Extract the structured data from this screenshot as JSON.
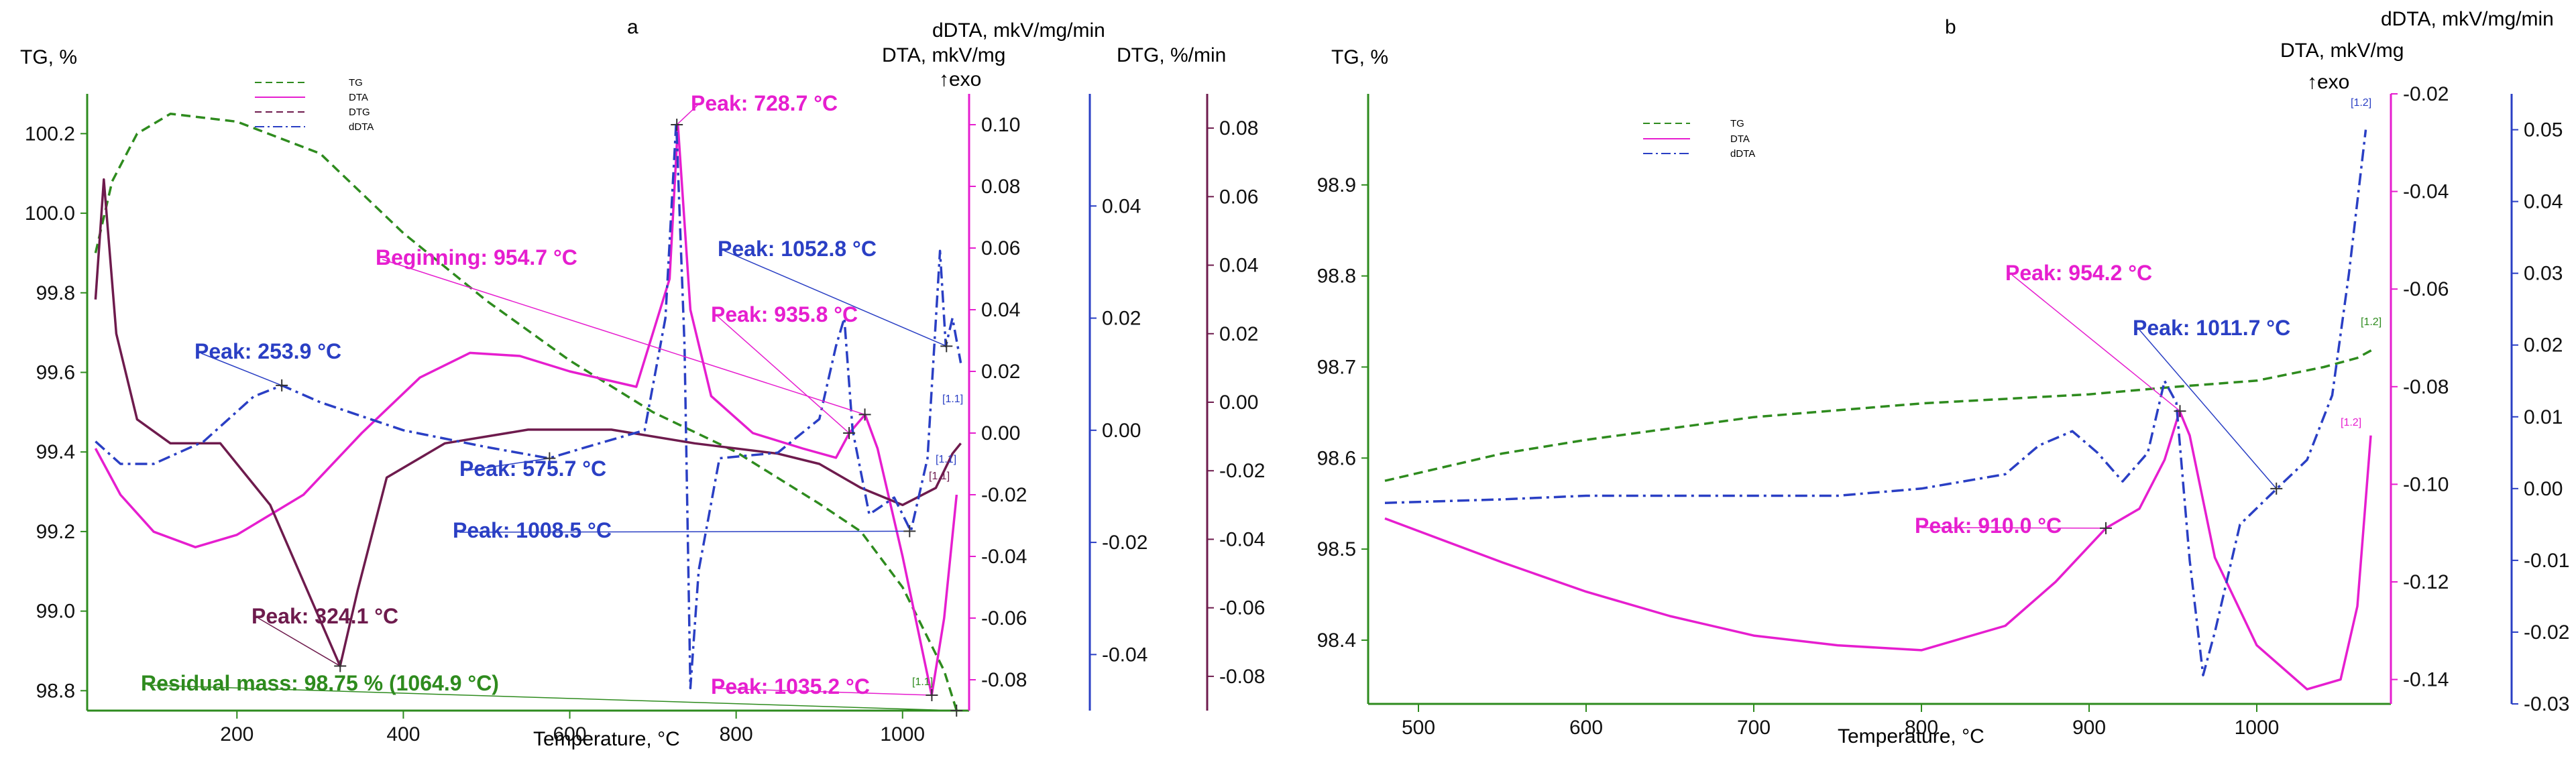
{
  "chart_data": [
    {
      "panel_label": "a",
      "type": "line",
      "xlabel": "Temperature, °C",
      "xlim": [
        20,
        1080
      ],
      "x_ticks": [
        200,
        400,
        600,
        800,
        1000
      ],
      "axes": {
        "tg": {
          "label": "TG, %",
          "lim": [
            98.75,
            100.3
          ],
          "ticks": [
            98.8,
            99.0,
            99.2,
            99.4,
            99.6,
            99.8,
            100.0,
            100.2
          ]
        },
        "dta": {
          "label": "DTA, mkV/mg",
          "lim": [
            -0.09,
            0.11
          ],
          "ticks": [
            -0.08,
            -0.06,
            -0.04,
            -0.02,
            0.0,
            0.02,
            0.04,
            0.06,
            0.08,
            0.1
          ]
        },
        "ddta": {
          "label": "dDTA, mkV/mg/min",
          "lim": [
            -0.05,
            0.06
          ],
          "ticks": [
            -0.04,
            -0.02,
            0.0,
            0.02,
            0.04
          ]
        },
        "dtg": {
          "label": "DTG, %/min",
          "lim": [
            -0.09,
            0.09
          ],
          "ticks": [
            -0.08,
            -0.06,
            -0.04,
            -0.02,
            0.0,
            0.02,
            0.04,
            0.06,
            0.08
          ]
        }
      },
      "exo_label": "↑exo",
      "legend": [
        "TG",
        "DTA",
        "DTG",
        "dDTA"
      ],
      "series": [
        {
          "name": "TG",
          "axis": "tg",
          "color": "#2e8b1e",
          "dash": "dash",
          "points": [
            [
              30,
              99.9
            ],
            [
              50,
              100.08
            ],
            [
              80,
              100.2
            ],
            [
              120,
              100.25
            ],
            [
              200,
              100.23
            ],
            [
              300,
              100.15
            ],
            [
              400,
              99.95
            ],
            [
              500,
              99.78
            ],
            [
              600,
              99.63
            ],
            [
              700,
              99.5
            ],
            [
              800,
              99.4
            ],
            [
              900,
              99.27
            ],
            [
              950,
              99.2
            ],
            [
              1000,
              99.06
            ],
            [
              1050,
              98.85
            ],
            [
              1065,
              98.75
            ]
          ]
        },
        {
          "name": "DTA",
          "axis": "dta",
          "color": "#e61ecf",
          "dash": "solid",
          "points": [
            [
              30,
              -0.005
            ],
            [
              60,
              -0.02
            ],
            [
              100,
              -0.032
            ],
            [
              150,
              -0.037
            ],
            [
              200,
              -0.033
            ],
            [
              280,
              -0.02
            ],
            [
              350,
              0.0
            ],
            [
              420,
              0.018
            ],
            [
              480,
              0.026
            ],
            [
              540,
              0.025
            ],
            [
              600,
              0.02
            ],
            [
              680,
              0.015
            ],
            [
              720,
              0.05
            ],
            [
              730,
              0.1
            ],
            [
              745,
              0.04
            ],
            [
              770,
              0.012
            ],
            [
              820,
              0.0
            ],
            [
              880,
              -0.005
            ],
            [
              920,
              -0.008
            ],
            [
              936,
              0.0
            ],
            [
              955,
              0.006
            ],
            [
              970,
              -0.005
            ],
            [
              1000,
              -0.04
            ],
            [
              1035,
              -0.085
            ],
            [
              1050,
              -0.06
            ],
            [
              1065,
              -0.02
            ]
          ]
        },
        {
          "name": "DTG",
          "axis": "dtg",
          "color": "#6e1b4d",
          "dash": "solid",
          "points": [
            [
              30,
              0.03
            ],
            [
              40,
              0.065
            ],
            [
              55,
              0.02
            ],
            [
              80,
              -0.005
            ],
            [
              120,
              -0.012
            ],
            [
              180,
              -0.012
            ],
            [
              240,
              -0.03
            ],
            [
              290,
              -0.058
            ],
            [
              324,
              -0.077
            ],
            [
              345,
              -0.055
            ],
            [
              380,
              -0.022
            ],
            [
              450,
              -0.012
            ],
            [
              550,
              -0.008
            ],
            [
              650,
              -0.008
            ],
            [
              750,
              -0.012
            ],
            [
              850,
              -0.015
            ],
            [
              900,
              -0.018
            ],
            [
              950,
              -0.025
            ],
            [
              1000,
              -0.03
            ],
            [
              1040,
              -0.025
            ],
            [
              1060,
              -0.015
            ],
            [
              1070,
              -0.012
            ]
          ]
        },
        {
          "name": "dDTA",
          "axis": "ddta",
          "color": "#2a3fc4",
          "dash": "dashdot",
          "points": [
            [
              30,
              -0.002
            ],
            [
              60,
              -0.006
            ],
            [
              100,
              -0.006
            ],
            [
              160,
              -0.002
            ],
            [
              220,
              0.006
            ],
            [
              254,
              0.008
            ],
            [
              300,
              0.005
            ],
            [
              400,
              0.0
            ],
            [
              500,
              -0.003
            ],
            [
              575,
              -0.005
            ],
            [
              620,
              -0.003
            ],
            [
              690,
              0.0
            ],
            [
              715,
              0.02
            ],
            [
              728,
              0.055
            ],
            [
              738,
              0.015
            ],
            [
              745,
              -0.046
            ],
            [
              755,
              -0.025
            ],
            [
              780,
              -0.005
            ],
            [
              850,
              -0.004
            ],
            [
              900,
              0.002
            ],
            [
              920,
              0.015
            ],
            [
              930,
              0.02
            ],
            [
              940,
              0.0
            ],
            [
              960,
              -0.015
            ],
            [
              990,
              -0.012
            ],
            [
              1010,
              -0.018
            ],
            [
              1030,
              -0.005
            ],
            [
              1045,
              0.032
            ],
            [
              1052,
              0.015
            ],
            [
              1060,
              0.02
            ],
            [
              1070,
              0.012
            ]
          ]
        }
      ],
      "annotations": [
        {
          "text": "Peak: 728.7 °C",
          "color": "#e61ecf",
          "x": 728.7,
          "axis": "dta",
          "y": 0.1
        },
        {
          "text": "Beginning: 954.7 °C",
          "color": "#e61ecf",
          "x": 954.7,
          "axis": "dta",
          "y": 0.006
        },
        {
          "text": "Peak: 935.8 °C",
          "color": "#e61ecf",
          "x": 935.8,
          "axis": "dta",
          "y": 0.0
        },
        {
          "text": "Peak: 1052.8 °C",
          "color": "#2a3fc4",
          "x": 1052.8,
          "axis": "ddta",
          "y": 0.015
        },
        {
          "text": "Peak: 253.9 °C",
          "color": "#2a3fc4",
          "x": 253.9,
          "axis": "ddta",
          "y": 0.008
        },
        {
          "text": "Peak: 575.7 °C",
          "color": "#2a3fc4",
          "x": 575.7,
          "axis": "ddta",
          "y": -0.005
        },
        {
          "text": "Peak: 1008.5 °C",
          "color": "#2a3fc4",
          "x": 1008.5,
          "axis": "ddta",
          "y": -0.018
        },
        {
          "text": "Peak: 324.1 °C",
          "color": "#6e1b4d",
          "x": 324.1,
          "axis": "dtg",
          "y": -0.077
        },
        {
          "text": "Peak: 1035.2 °C",
          "color": "#e61ecf",
          "x": 1035.2,
          "axis": "dta",
          "y": -0.085
        },
        {
          "text": "Residual mass: 98.75 % (1064.9 °C)",
          "color": "#2e8b1e",
          "x": 1064.9,
          "axis": "tg",
          "y": 98.75
        }
      ],
      "end_markers": [
        "[1.1]",
        "[1.1]",
        "[1.1]",
        "[1.1]"
      ]
    },
    {
      "panel_label": "b",
      "type": "line",
      "xlabel": "Temperature, °C",
      "xlim": [
        470,
        1080
      ],
      "x_ticks": [
        500,
        600,
        700,
        800,
        900,
        1000
      ],
      "axes": {
        "tg": {
          "label": "TG, %",
          "lim": [
            98.33,
            99.0
          ],
          "ticks": [
            98.4,
            98.5,
            98.6,
            98.7,
            98.8,
            98.9
          ]
        },
        "dta": {
          "label": "DTA, mkV/mg",
          "lim": [
            -0.145,
            -0.02
          ],
          "ticks": [
            -0.14,
            -0.12,
            -0.1,
            -0.08,
            -0.06,
            -0.04,
            -0.02
          ]
        },
        "ddta": {
          "label": "dDTA, mkV/mg/min",
          "lim": [
            -0.03,
            0.055
          ],
          "ticks": [
            -0.03,
            -0.02,
            -0.01,
            0.0,
            0.01,
            0.02,
            0.03,
            0.04,
            0.05
          ]
        }
      },
      "exo_label": "↑exo",
      "legend": [
        "TG",
        "DTA",
        "dDTA"
      ],
      "series": [
        {
          "name": "TG",
          "axis": "tg",
          "color": "#2e8b1e",
          "dash": "dash",
          "points": [
            [
              480,
              98.575
            ],
            [
              550,
              98.605
            ],
            [
              600,
              98.62
            ],
            [
              700,
              98.645
            ],
            [
              800,
              98.66
            ],
            [
              900,
              98.67
            ],
            [
              950,
              98.678
            ],
            [
              1000,
              98.685
            ],
            [
              1040,
              98.7
            ],
            [
              1060,
              98.71
            ],
            [
              1070,
              98.72
            ]
          ]
        },
        {
          "name": "DTA",
          "axis": "dta",
          "color": "#e61ecf",
          "dash": "solid",
          "points": [
            [
              480,
              -0.107
            ],
            [
              550,
              -0.116
            ],
            [
              600,
              -0.122
            ],
            [
              650,
              -0.127
            ],
            [
              700,
              -0.131
            ],
            [
              750,
              -0.133
            ],
            [
              800,
              -0.134
            ],
            [
              850,
              -0.129
            ],
            [
              880,
              -0.12
            ],
            [
              910,
              -0.109
            ],
            [
              930,
              -0.105
            ],
            [
              945,
              -0.095
            ],
            [
              954,
              -0.085
            ],
            [
              960,
              -0.09
            ],
            [
              975,
              -0.115
            ],
            [
              1000,
              -0.133
            ],
            [
              1030,
              -0.142
            ],
            [
              1050,
              -0.14
            ],
            [
              1060,
              -0.125
            ],
            [
              1068,
              -0.09
            ]
          ]
        },
        {
          "name": "dDTA",
          "axis": "ddta",
          "color": "#2a3fc4",
          "dash": "dashdot",
          "points": [
            [
              480,
              -0.002
            ],
            [
              550,
              -0.0015
            ],
            [
              600,
              -0.001
            ],
            [
              650,
              -0.001
            ],
            [
              700,
              -0.001
            ],
            [
              750,
              -0.001
            ],
            [
              800,
              0.0
            ],
            [
              850,
              0.002
            ],
            [
              870,
              0.006
            ],
            [
              890,
              0.008
            ],
            [
              905,
              0.005
            ],
            [
              920,
              0.001
            ],
            [
              935,
              0.005
            ],
            [
              945,
              0.015
            ],
            [
              952,
              0.012
            ],
            [
              960,
              -0.01
            ],
            [
              968,
              -0.026
            ],
            [
              975,
              -0.02
            ],
            [
              990,
              -0.005
            ],
            [
              1012,
              0.0
            ],
            [
              1030,
              0.004
            ],
            [
              1045,
              0.013
            ],
            [
              1055,
              0.03
            ],
            [
              1065,
              0.05
            ]
          ]
        }
      ],
      "annotations": [
        {
          "text": "Peak: 954.2 °C",
          "color": "#e61ecf",
          "x": 954.2,
          "axis": "dta",
          "y": -0.085
        },
        {
          "text": "Peak: 1011.7 °C",
          "color": "#2a3fc4",
          "x": 1011.7,
          "axis": "ddta",
          "y": 0.0
        },
        {
          "text": "Peak: 910.0 °C",
          "color": "#e61ecf",
          "x": 910.0,
          "axis": "dta",
          "y": -0.109
        }
      ],
      "end_markers": [
        "[1.2]",
        "[1.2]",
        "[1.2]"
      ]
    }
  ]
}
